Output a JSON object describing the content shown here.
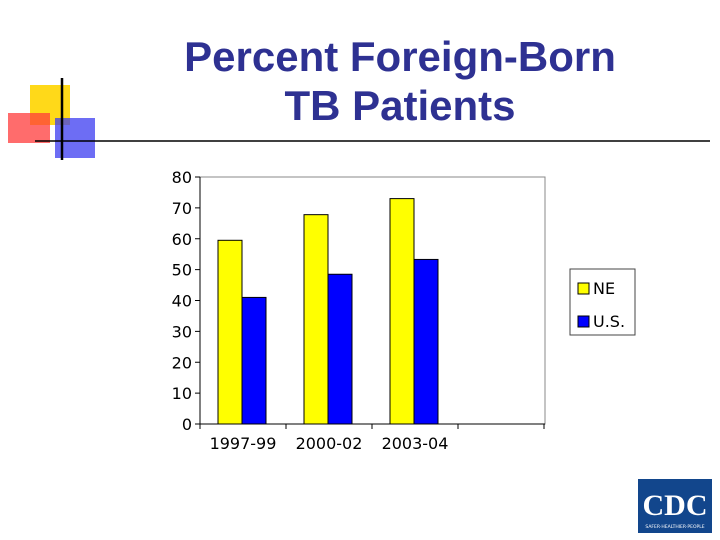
{
  "slide": {
    "title_line1": "Percent Foreign-Born",
    "title_line2": "TB Patients",
    "logo_text": "CDC",
    "logo_tagline": "SAFER·HEALTHIER·PEOPLE",
    "colors": {
      "title": "#2e3192",
      "decor_yellow": "#ffd500",
      "decor_red": "#ff3b3b",
      "decor_blue": "#3c3cf0",
      "logo_blue": "#12468c"
    }
  },
  "chart_data": {
    "type": "bar",
    "title": "Percent Foreign-Born TB Patients",
    "categories": [
      "1997-99",
      "2000-02",
      "2003-04"
    ],
    "series": [
      {
        "name": "NE",
        "values": [
          59.5,
          67.8,
          73.0
        ],
        "color": "#ffff00"
      },
      {
        "name": "U.S.",
        "values": [
          41.0,
          48.5,
          53.3
        ],
        "color": "#0000ff"
      }
    ],
    "y_ticks": [
      "0",
      "10",
      "20",
      "30",
      "40",
      "50",
      "60",
      "70",
      "80"
    ],
    "ylim": [
      0,
      80
    ],
    "grid": false,
    "legend_position": "right"
  }
}
